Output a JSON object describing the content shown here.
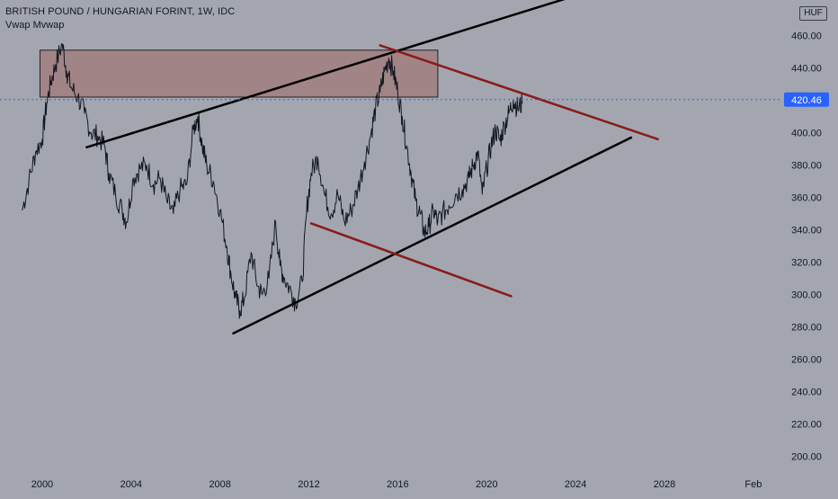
{
  "header": {
    "title": "BRITISH POUND / HUNGARIAN FORINT, 1W, IDC",
    "indicator": "Vwap Mvwap",
    "currency_badge": "HUF"
  },
  "colors": {
    "background": "#a3a6af",
    "price_line": "#131722",
    "black_trendline": "#000000",
    "red_trendline": "#8b1a1a",
    "zone_fill": "#a07878",
    "current_price_line": "#2962ff"
  },
  "chart_data": {
    "type": "line",
    "title": "BRITISH POUND / HUNGARIAN FORINT, 1W, IDC",
    "xlabel": "",
    "ylabel": "",
    "y_ticks": [
      200,
      220,
      240,
      260,
      280,
      300,
      320,
      340,
      360,
      380,
      400,
      420,
      440,
      460
    ],
    "y_tick_labels": [
      "200.00",
      "220.00",
      "240.00",
      "260.00",
      "280.00",
      "300.00",
      "320.00",
      "340.00",
      "360.00",
      "380.00",
      "400.00",
      "420.00",
      "440.00",
      "460.00"
    ],
    "x_tick_labels": [
      "2000",
      "2004",
      "2008",
      "2012",
      "2016",
      "2020",
      "2024",
      "2028",
      "Feb"
    ],
    "x_ticks": [
      2000,
      2004,
      2008,
      2012,
      2016,
      2020,
      2024,
      2028,
      2032
    ],
    "xlim": [
      1998.1,
      2033.3
    ],
    "ylim": [
      192,
      482
    ],
    "current_price": 420.46,
    "current_price_label": "420.46",
    "series": [
      {
        "values": [
          [
            1999.1,
            352
          ],
          [
            1999.4,
            370
          ],
          [
            1999.7,
            388
          ],
          [
            2000.0,
            396
          ],
          [
            2000.2,
            418
          ],
          [
            2000.4,
            432
          ],
          [
            2000.6,
            442
          ],
          [
            2000.9,
            455
          ],
          [
            2001.1,
            438
          ],
          [
            2001.3,
            428
          ],
          [
            2001.6,
            422
          ],
          [
            2001.9,
            412
          ],
          [
            2002.2,
            400
          ],
          [
            2002.5,
            398
          ],
          [
            2002.8,
            392
          ],
          [
            2003.0,
            375
          ],
          [
            2003.3,
            362
          ],
          [
            2003.6,
            352
          ],
          [
            2003.8,
            345
          ],
          [
            2004.1,
            372
          ],
          [
            2004.4,
            378
          ],
          [
            2004.7,
            380
          ],
          [
            2005.0,
            368
          ],
          [
            2005.3,
            372
          ],
          [
            2005.6,
            358
          ],
          [
            2005.9,
            350
          ],
          [
            2006.2,
            365
          ],
          [
            2006.5,
            368
          ],
          [
            2006.8,
            402
          ],
          [
            2007.0,
            410
          ],
          [
            2007.2,
            392
          ],
          [
            2007.4,
            380
          ],
          [
            2007.7,
            370
          ],
          [
            2008.0,
            352
          ],
          [
            2008.3,
            330
          ],
          [
            2008.5,
            312
          ],
          [
            2008.7,
            298
          ],
          [
            2008.9,
            290
          ],
          [
            2009.1,
            298
          ],
          [
            2009.4,
            326
          ],
          [
            2009.7,
            305
          ],
          [
            2009.9,
            300
          ],
          [
            2010.2,
            310
          ],
          [
            2010.5,
            345
          ],
          [
            2010.7,
            318
          ],
          [
            2010.9,
            310
          ],
          [
            2011.2,
            302
          ],
          [
            2011.4,
            295
          ],
          [
            2011.7,
            308
          ],
          [
            2011.9,
            352
          ],
          [
            2012.1,
            375
          ],
          [
            2012.4,
            385
          ],
          [
            2012.7,
            362
          ],
          [
            2013.0,
            350
          ],
          [
            2013.3,
            362
          ],
          [
            2013.6,
            345
          ],
          [
            2013.9,
            352
          ],
          [
            2014.2,
            365
          ],
          [
            2014.5,
            382
          ],
          [
            2014.8,
            400
          ],
          [
            2015.0,
            415
          ],
          [
            2015.2,
            425
          ],
          [
            2015.4,
            438
          ],
          [
            2015.6,
            446
          ],
          [
            2015.8,
            438
          ],
          [
            2016.0,
            425
          ],
          [
            2016.2,
            410
          ],
          [
            2016.4,
            392
          ],
          [
            2016.6,
            375
          ],
          [
            2016.8,
            358
          ],
          [
            2017.0,
            350
          ],
          [
            2017.2,
            338
          ],
          [
            2017.4,
            342
          ],
          [
            2017.6,
            352
          ],
          [
            2017.8,
            345
          ],
          [
            2018.0,
            350
          ],
          [
            2018.3,
            355
          ],
          [
            2018.6,
            362
          ],
          [
            2018.9,
            365
          ],
          [
            2019.2,
            372
          ],
          [
            2019.4,
            380
          ],
          [
            2019.6,
            388
          ],
          [
            2019.8,
            362
          ],
          [
            2020.0,
            378
          ],
          [
            2020.2,
            392
          ],
          [
            2020.4,
            402
          ],
          [
            2020.6,
            395
          ],
          [
            2020.8,
            405
          ],
          [
            2021.0,
            412
          ],
          [
            2021.2,
            420
          ],
          [
            2021.4,
            415
          ],
          [
            2021.6,
            418
          ]
        ]
      }
    ],
    "trendlines": [
      {
        "color": "black",
        "from": [
          2002.0,
          391
        ],
        "to": [
          2023.6,
          483
        ]
      },
      {
        "color": "black",
        "from": [
          2008.6,
          276
        ],
        "to": [
          2026.5,
          397
        ]
      },
      {
        "color": "red",
        "from": [
          2015.2,
          454
        ],
        "to": [
          2027.7,
          396
        ]
      },
      {
        "color": "red",
        "from": [
          2012.1,
          344
        ],
        "to": [
          2021.1,
          299
        ]
      }
    ],
    "zones": [
      {
        "x_range": [
          1999.9,
          2017.8
        ],
        "y_range": [
          422,
          451
        ]
      }
    ]
  }
}
